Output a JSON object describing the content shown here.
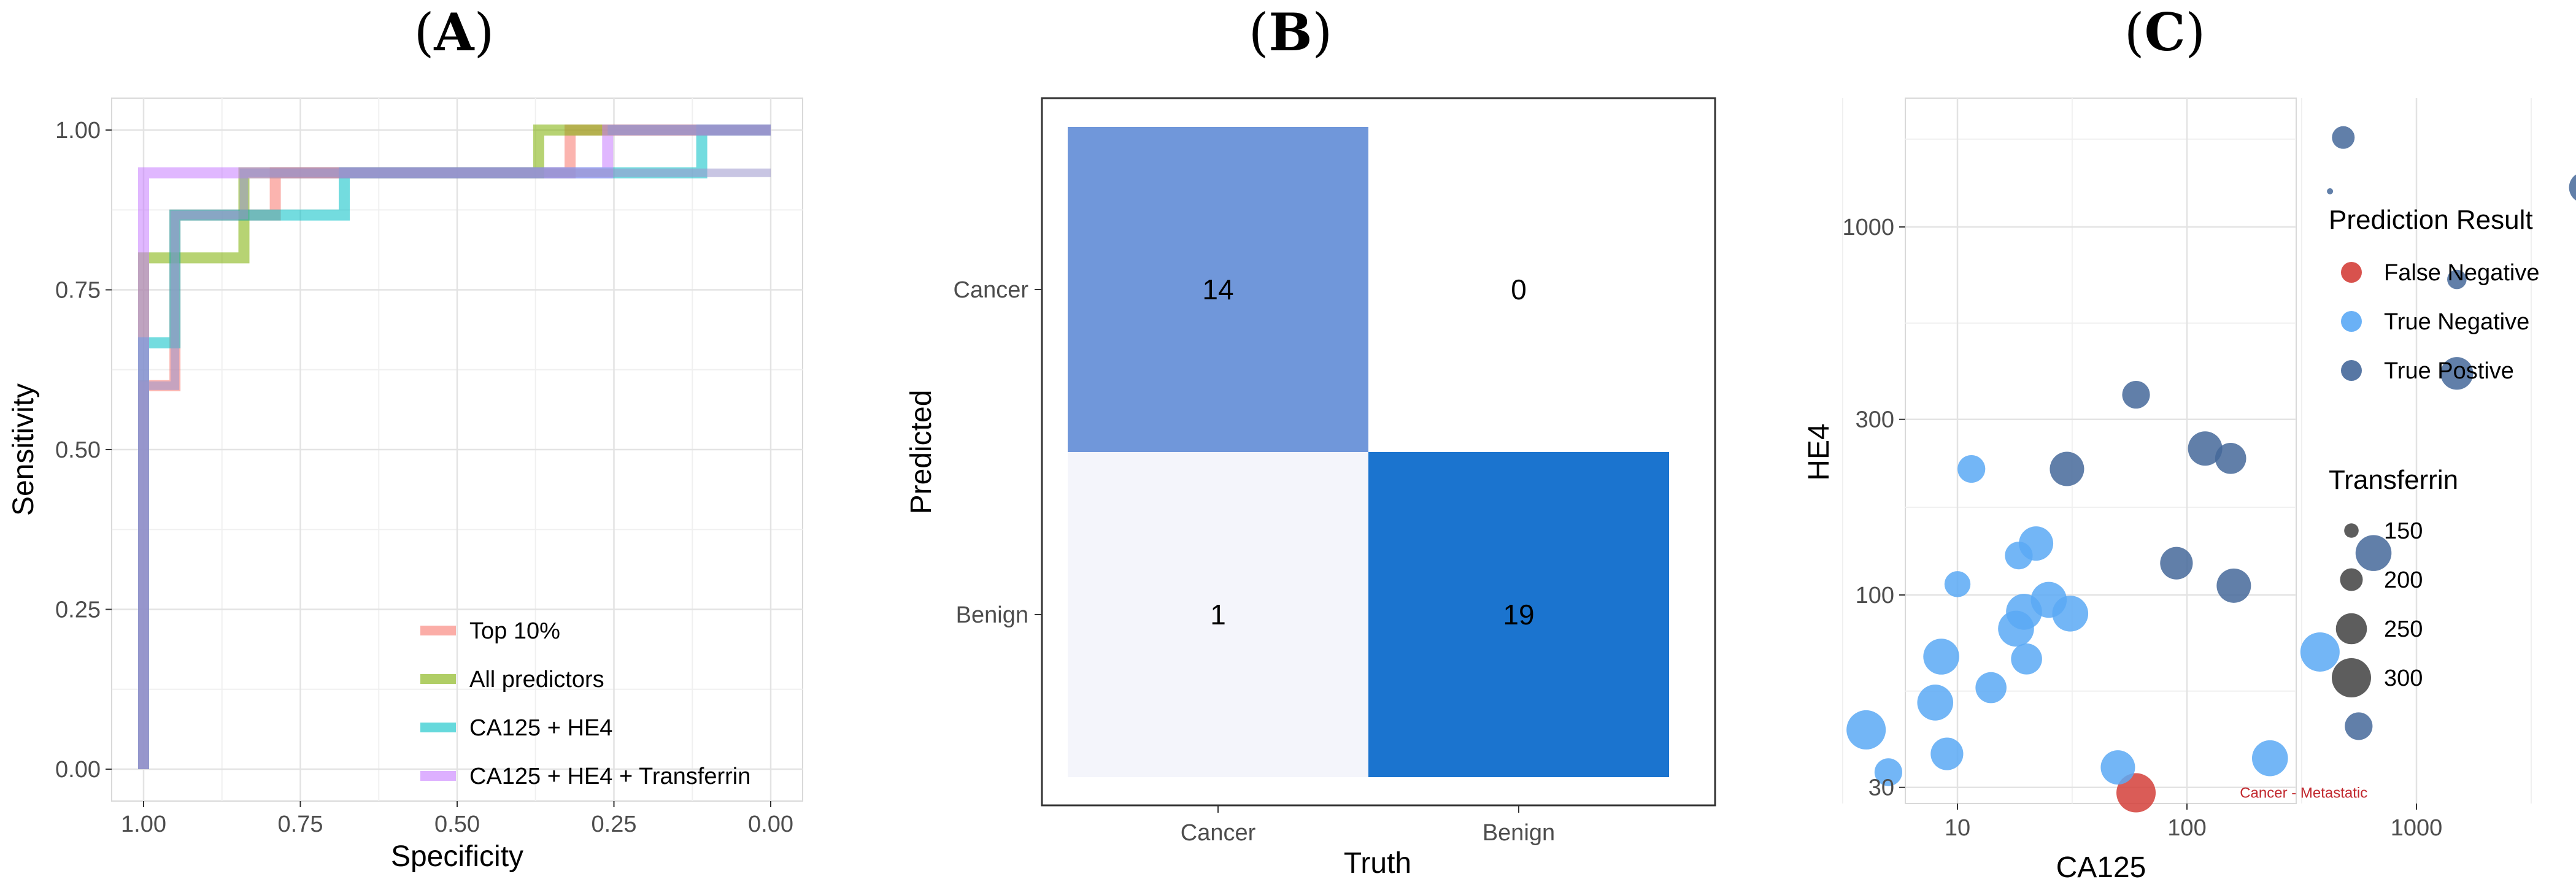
{
  "panel_titles": {
    "a": {
      "open": "(",
      "letter": "A",
      "close": ")"
    },
    "b": {
      "open": "(",
      "letter": "B",
      "close": ")"
    },
    "c": {
      "open": "(",
      "letter": "C",
      "close": ")"
    }
  },
  "chart_data": [
    {
      "type": "line",
      "panel": "A",
      "xlabel": "Specificity",
      "ylabel": "Sensitivity",
      "xlim": [
        1.0,
        0.0
      ],
      "ylim": [
        0.0,
        1.0
      ],
      "x_reversed": true,
      "x_ticks": [
        "1.00",
        "0.75",
        "0.50",
        "0.25",
        "0.00"
      ],
      "x_tick_values": [
        1.0,
        0.75,
        0.5,
        0.25,
        0.0
      ],
      "y_ticks": [
        "0.00",
        "0.25",
        "0.50",
        "0.75",
        "1.00"
      ],
      "y_tick_values": [
        0.0,
        0.25,
        0.5,
        0.75,
        1.0
      ],
      "grid": true,
      "legend_position": "bottom-right inside",
      "series": [
        {
          "name": "Top 10%",
          "color": "#f8766d",
          "points": [
            [
              1.0,
              0.0
            ],
            [
              1.0,
              0.6
            ],
            [
              0.95,
              0.6
            ],
            [
              0.95,
              0.867
            ],
            [
              0.79,
              0.867
            ],
            [
              0.79,
              0.933
            ],
            [
              0.32,
              0.933
            ],
            [
              0.32,
              1.0
            ],
            [
              0.0,
              1.0
            ]
          ]
        },
        {
          "name": "All predictors",
          "color": "#7cae00",
          "points": [
            [
              1.0,
              0.0
            ],
            [
              1.0,
              0.8
            ],
            [
              0.84,
              0.8
            ],
            [
              0.84,
              0.933
            ],
            [
              0.37,
              0.933
            ],
            [
              0.37,
              1.0
            ],
            [
              0.0,
              1.0
            ]
          ]
        },
        {
          "name": "CA125 + HE4",
          "color": "#00bfc4",
          "points": [
            [
              1.0,
              0.0
            ],
            [
              1.0,
              0.667
            ],
            [
              0.95,
              0.667
            ],
            [
              0.95,
              0.867
            ],
            [
              0.68,
              0.867
            ],
            [
              0.68,
              0.933
            ],
            [
              0.11,
              0.933
            ],
            [
              0.11,
              1.0
            ],
            [
              0.0,
              1.0
            ]
          ]
        },
        {
          "name": "CA125 + HE4 + Transferrin",
          "color": "#c77cff",
          "points": [
            [
              1.0,
              0.0
            ],
            [
              1.0,
              0.933
            ],
            [
              0.26,
              0.933
            ],
            [
              0.26,
              1.0
            ],
            [
              0.0,
              1.0
            ]
          ]
        }
      ],
      "overlay_color": "#9b95cc"
    },
    {
      "type": "heatmap",
      "panel": "B",
      "xlabel": "Truth",
      "ylabel": "Predicted",
      "x_categories": [
        "Cancer",
        "Benign"
      ],
      "y_categories": [
        "Cancer",
        "Benign"
      ],
      "cells": [
        {
          "truth": "Cancer",
          "predicted": "Cancer",
          "value": 14,
          "color": "#7097da"
        },
        {
          "truth": "Benign",
          "predicted": "Cancer",
          "value": 0,
          "color": "#ffffff"
        },
        {
          "truth": "Cancer",
          "predicted": "Benign",
          "value": 1,
          "color": "#f4f5fb"
        },
        {
          "truth": "Benign",
          "predicted": "Benign",
          "value": 19,
          "color": "#1b74cf"
        }
      ]
    },
    {
      "type": "scatter",
      "panel": "C",
      "xlabel": "CA125",
      "ylabel": "HE4",
      "x_scale": "log",
      "y_scale": "log",
      "xlim": [
        3.5,
        6200
      ],
      "ylim": [
        27,
        3000
      ],
      "x_ticks": [
        "10",
        "100",
        "1000"
      ],
      "x_tick_values": [
        10,
        100,
        1000
      ],
      "y_ticks": [
        "30",
        "100",
        "300",
        "1000"
      ],
      "y_tick_values": [
        30,
        100,
        300,
        1000
      ],
      "grid": true,
      "annotation": {
        "text": "Cancer - Metastatic",
        "x": 170,
        "y": 29
      },
      "legend": {
        "color_title": "Prediction Result",
        "color_entries": [
          {
            "name": "False Negative",
            "color": "#d43f3a"
          },
          {
            "name": "True Negative",
            "color": "#5aa9f5"
          },
          {
            "name": "True Postive",
            "color": "#45689a"
          }
        ],
        "size_title": "Transferrin",
        "size_entries": [
          150,
          200,
          250,
          300
        ]
      },
      "points": [
        {
          "x": 60,
          "y": 29,
          "transferrin": 300,
          "result": "False Negative"
        },
        {
          "x": 480,
          "y": 1750,
          "transferrin": 200,
          "result": "True Postive"
        },
        {
          "x": 420,
          "y": 1250,
          "transferrin": 100,
          "result": "True Postive"
        },
        {
          "x": 5400,
          "y": 1280,
          "transferrin": 250,
          "result": "True Postive"
        },
        {
          "x": 1500,
          "y": 720,
          "transferrin": 180,
          "result": "True Postive"
        },
        {
          "x": 1500,
          "y": 400,
          "transferrin": 260,
          "result": "True Postive"
        },
        {
          "x": 60,
          "y": 350,
          "transferrin": 230,
          "result": "True Postive"
        },
        {
          "x": 120,
          "y": 250,
          "transferrin": 270,
          "result": "True Postive"
        },
        {
          "x": 155,
          "y": 235,
          "transferrin": 250,
          "result": "True Postive"
        },
        {
          "x": 30,
          "y": 220,
          "transferrin": 270,
          "result": "True Postive"
        },
        {
          "x": 650,
          "y": 130,
          "transferrin": 280,
          "result": "True Postive"
        },
        {
          "x": 90,
          "y": 122,
          "transferrin": 260,
          "result": "True Postive"
        },
        {
          "x": 160,
          "y": 106,
          "transferrin": 270,
          "result": "True Postive"
        },
        {
          "x": 560,
          "y": 44,
          "transferrin": 230,
          "result": "True Postive"
        },
        {
          "x": 11.5,
          "y": 220,
          "transferrin": 230,
          "result": "True Negative"
        },
        {
          "x": 22,
          "y": 138,
          "transferrin": 270,
          "result": "True Negative"
        },
        {
          "x": 18.5,
          "y": 128,
          "transferrin": 230,
          "result": "True Negative"
        },
        {
          "x": 10,
          "y": 107,
          "transferrin": 220,
          "result": "True Negative"
        },
        {
          "x": 25,
          "y": 97,
          "transferrin": 280,
          "result": "True Negative"
        },
        {
          "x": 19.5,
          "y": 90,
          "transferrin": 280,
          "result": "True Negative"
        },
        {
          "x": 31,
          "y": 89,
          "transferrin": 280,
          "result": "True Negative"
        },
        {
          "x": 18,
          "y": 81,
          "transferrin": 280,
          "result": "True Negative"
        },
        {
          "x": 8.5,
          "y": 68,
          "transferrin": 280,
          "result": "True Negative"
        },
        {
          "x": 20,
          "y": 67,
          "transferrin": 250,
          "result": "True Negative"
        },
        {
          "x": 380,
          "y": 70,
          "transferrin": 300,
          "result": "True Negative"
        },
        {
          "x": 14,
          "y": 56,
          "transferrin": 250,
          "result": "True Negative"
        },
        {
          "x": 8,
          "y": 51,
          "transferrin": 280,
          "result": "True Negative"
        },
        {
          "x": 4,
          "y": 43,
          "transferrin": 300,
          "result": "True Negative"
        },
        {
          "x": 9,
          "y": 37,
          "transferrin": 260,
          "result": "True Negative"
        },
        {
          "x": 5,
          "y": 33,
          "transferrin": 230,
          "result": "True Negative"
        },
        {
          "x": 50,
          "y": 34,
          "transferrin": 270,
          "result": "True Negative"
        },
        {
          "x": 230,
          "y": 36,
          "transferrin": 280,
          "result": "True Negative"
        }
      ]
    }
  ]
}
